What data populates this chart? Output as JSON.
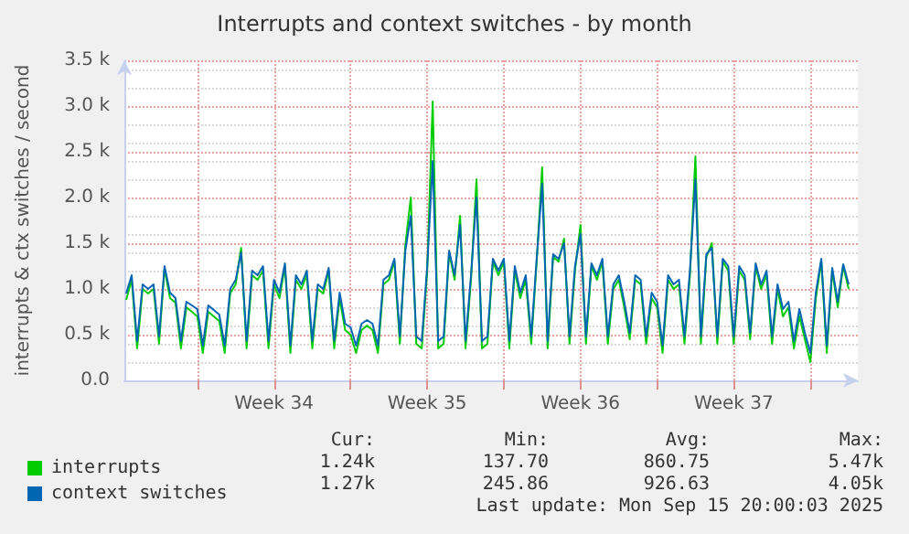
{
  "chart_data": {
    "type": "line",
    "title": "Interrupts and context switches - by month",
    "ylabel": "interrupts & ctx switches / second",
    "x": [
      "2025-08-14T18:00",
      "2025-08-15T00:00",
      "2025-08-15T06:00",
      "2025-08-15T12:00",
      "2025-08-15T18:00",
      "2025-08-16T00:00",
      "2025-08-16T06:00",
      "2025-08-16T12:00",
      "2025-08-16T18:00",
      "2025-08-17T00:00",
      "2025-08-17T06:00",
      "2025-08-17T12:00",
      "2025-08-17T18:00",
      "2025-08-18T00:00",
      "2025-08-18T06:00",
      "2025-08-18T12:00",
      "2025-08-18T18:00",
      "2025-08-19T00:00",
      "2025-08-19T06:00",
      "2025-08-19T12:00",
      "2025-08-19T18:00",
      "2025-08-20T00:00",
      "2025-08-20T06:00",
      "2025-08-20T12:00",
      "2025-08-20T18:00",
      "2025-08-21T00:00",
      "2025-08-21T06:00",
      "2025-08-21T12:00",
      "2025-08-21T18:00",
      "2025-08-22T00:00",
      "2025-08-22T06:00",
      "2025-08-22T12:00",
      "2025-08-22T18:00",
      "2025-08-23T00:00",
      "2025-08-23T06:00",
      "2025-08-23T12:00",
      "2025-08-23T18:00",
      "2025-08-24T00:00",
      "2025-08-24T06:00",
      "2025-08-24T12:00",
      "2025-08-24T18:00",
      "2025-08-25T00:00",
      "2025-08-25T06:00",
      "2025-08-25T12:00",
      "2025-08-25T18:00",
      "2025-08-26T00:00",
      "2025-08-26T06:00",
      "2025-08-26T12:00",
      "2025-08-26T18:00",
      "2025-08-27T00:00",
      "2025-08-27T06:00",
      "2025-08-27T12:00",
      "2025-08-27T18:00",
      "2025-08-28T00:00",
      "2025-08-28T06:00",
      "2025-08-28T12:00",
      "2025-08-28T18:00",
      "2025-08-29T00:00",
      "2025-08-29T06:00",
      "2025-08-29T12:00",
      "2025-08-29T18:00",
      "2025-08-30T00:00",
      "2025-08-30T06:00",
      "2025-08-30T12:00",
      "2025-08-30T18:00",
      "2025-08-31T00:00",
      "2025-08-31T06:00",
      "2025-08-31T12:00",
      "2025-08-31T18:00",
      "2025-09-01T00:00",
      "2025-09-01T06:00",
      "2025-09-01T12:00",
      "2025-09-01T18:00",
      "2025-09-02T00:00",
      "2025-09-02T06:00",
      "2025-09-02T12:00",
      "2025-09-02T18:00",
      "2025-09-03T00:00",
      "2025-09-03T06:00",
      "2025-09-03T12:00",
      "2025-09-03T18:00",
      "2025-09-04T00:00",
      "2025-09-04T06:00",
      "2025-09-04T12:00",
      "2025-09-04T18:00",
      "2025-09-05T00:00",
      "2025-09-05T06:00",
      "2025-09-05T12:00",
      "2025-09-05T18:00",
      "2025-09-06T00:00",
      "2025-09-06T06:00",
      "2025-09-06T12:00",
      "2025-09-06T18:00",
      "2025-09-07T00:00",
      "2025-09-07T06:00",
      "2025-09-07T12:00",
      "2025-09-07T18:00",
      "2025-09-08T00:00",
      "2025-09-08T06:00",
      "2025-09-08T12:00",
      "2025-09-08T18:00",
      "2025-09-09T00:00",
      "2025-09-09T06:00",
      "2025-09-09T12:00",
      "2025-09-09T18:00",
      "2025-09-10T00:00",
      "2025-09-10T06:00",
      "2025-09-10T12:00",
      "2025-09-10T18:00",
      "2025-09-11T00:00",
      "2025-09-11T06:00",
      "2025-09-11T12:00",
      "2025-09-11T18:00",
      "2025-09-12T00:00",
      "2025-09-12T06:00",
      "2025-09-12T12:00",
      "2025-09-12T18:00",
      "2025-09-13T00:00",
      "2025-09-13T06:00",
      "2025-09-13T12:00",
      "2025-09-13T18:00",
      "2025-09-14T00:00",
      "2025-09-14T06:00",
      "2025-09-14T12:00",
      "2025-09-14T18:00",
      "2025-09-15T00:00",
      "2025-09-15T06:00",
      "2025-09-15T12:00",
      "2025-09-15T18:00",
      "2025-09-16T00:00",
      "2025-09-16T06:00",
      "2025-09-16T12:00",
      "2025-09-16T18:00"
    ],
    "series": [
      {
        "name": "interrupts",
        "color": "#00cc00",
        "values": [
          880,
          1100,
          350,
          1000,
          950,
          1000,
          400,
          1220,
          900,
          850,
          350,
          800,
          750,
          700,
          300,
          750,
          700,
          650,
          300,
          950,
          1050,
          1450,
          350,
          1150,
          1100,
          1200,
          350,
          1050,
          900,
          1250,
          300,
          1100,
          1000,
          1150,
          350,
          1000,
          950,
          1200,
          350,
          900,
          550,
          500,
          300,
          550,
          600,
          550,
          300,
          1050,
          1100,
          1300,
          400,
          1480,
          2000,
          400,
          350,
          1200,
          3050,
          350,
          400,
          1400,
          1100,
          1800,
          350,
          1100,
          2200,
          350,
          400,
          1300,
          1150,
          1300,
          350,
          1200,
          900,
          1100,
          400,
          1300,
          2330,
          350,
          1350,
          1300,
          1550,
          400,
          1200,
          1700,
          400,
          1250,
          1100,
          1300,
          400,
          1000,
          1100,
          800,
          450,
          1100,
          1050,
          400,
          900,
          800,
          300,
          1100,
          1000,
          1050,
          400,
          1150,
          2450,
          400,
          1350,
          1500,
          400,
          1300,
          1200,
          400,
          1200,
          1100,
          450,
          1250,
          1000,
          1150,
          400,
          1000,
          700,
          800,
          350,
          700,
          450,
          200,
          900,
          1300,
          300,
          1200,
          800,
          1250,
          1000
        ]
      },
      {
        "name": "context switches",
        "color": "#0066b3",
        "values": [
          950,
          1150,
          430,
          1050,
          1000,
          1050,
          480,
          1250,
          960,
          900,
          430,
          860,
          820,
          780,
          380,
          820,
          770,
          720,
          380,
          1000,
          1100,
          1400,
          430,
          1200,
          1150,
          1250,
          430,
          1100,
          960,
          1280,
          380,
          1150,
          1050,
          1200,
          430,
          1050,
          1000,
          1230,
          430,
          960,
          620,
          580,
          380,
          620,
          660,
          620,
          380,
          1100,
          1150,
          1330,
          480,
          1420,
          1800,
          480,
          430,
          1250,
          2400,
          430,
          480,
          1420,
          1150,
          1700,
          430,
          1150,
          2000,
          430,
          480,
          1330,
          1200,
          1330,
          430,
          1250,
          960,
          1150,
          480,
          1330,
          2150,
          430,
          1380,
          1330,
          1500,
          480,
          1250,
          1600,
          480,
          1280,
          1150,
          1330,
          480,
          1050,
          1150,
          860,
          520,
          1150,
          1100,
          480,
          960,
          860,
          380,
          1150,
          1050,
          1100,
          480,
          1200,
          2200,
          480,
          1380,
          1450,
          480,
          1330,
          1250,
          480,
          1250,
          1150,
          520,
          1280,
          1050,
          1200,
          480,
          1050,
          780,
          860,
          430,
          780,
          520,
          300,
          960,
          1330,
          380,
          1230,
          860,
          1270,
          1050
        ]
      }
    ],
    "xlim": [
      "2025-08-14T16:00",
      "2025-09-17T04:00"
    ],
    "xticks": [
      {
        "value": "2025-08-18T00:00",
        "label": null
      },
      {
        "value": "2025-08-21T12:00",
        "label": "Week 34"
      },
      {
        "value": "2025-08-25T00:00",
        "label": null
      },
      {
        "value": "2025-08-28T12:00",
        "label": "Week 35"
      },
      {
        "value": "2025-09-01T00:00",
        "label": null
      },
      {
        "value": "2025-09-04T12:00",
        "label": "Week 36"
      },
      {
        "value": "2025-09-08T00:00",
        "label": null
      },
      {
        "value": "2025-09-11T12:00",
        "label": "Week 37"
      },
      {
        "value": "2025-09-15T00:00",
        "label": null
      }
    ],
    "ylim": [
      0,
      3500
    ],
    "yticks": [
      {
        "value": 0,
        "label": "0.0"
      },
      {
        "value": 500,
        "label": "0.5 k"
      },
      {
        "value": 1000,
        "label": "1.0 k"
      },
      {
        "value": 1500,
        "label": "1.5 k"
      },
      {
        "value": 2000,
        "label": "2.0 k"
      },
      {
        "value": 2500,
        "label": "2.5 k"
      },
      {
        "value": 3000,
        "label": "3.0 k"
      },
      {
        "value": 3500,
        "label": "3.5 k"
      }
    ],
    "grid": true,
    "legend": "bottom left",
    "marker": "none",
    "line_style": "solid",
    "annotations": [
      "Cur:",
      "Min:",
      "Avg:",
      "Max:",
      "1.24k",
      "137.70",
      "860.75",
      "5.47k",
      "1.27k",
      "245.86",
      "926.63",
      "4.05k",
      "Last update: Mon Sep 15 20:00:03 2025"
    ]
  }
}
